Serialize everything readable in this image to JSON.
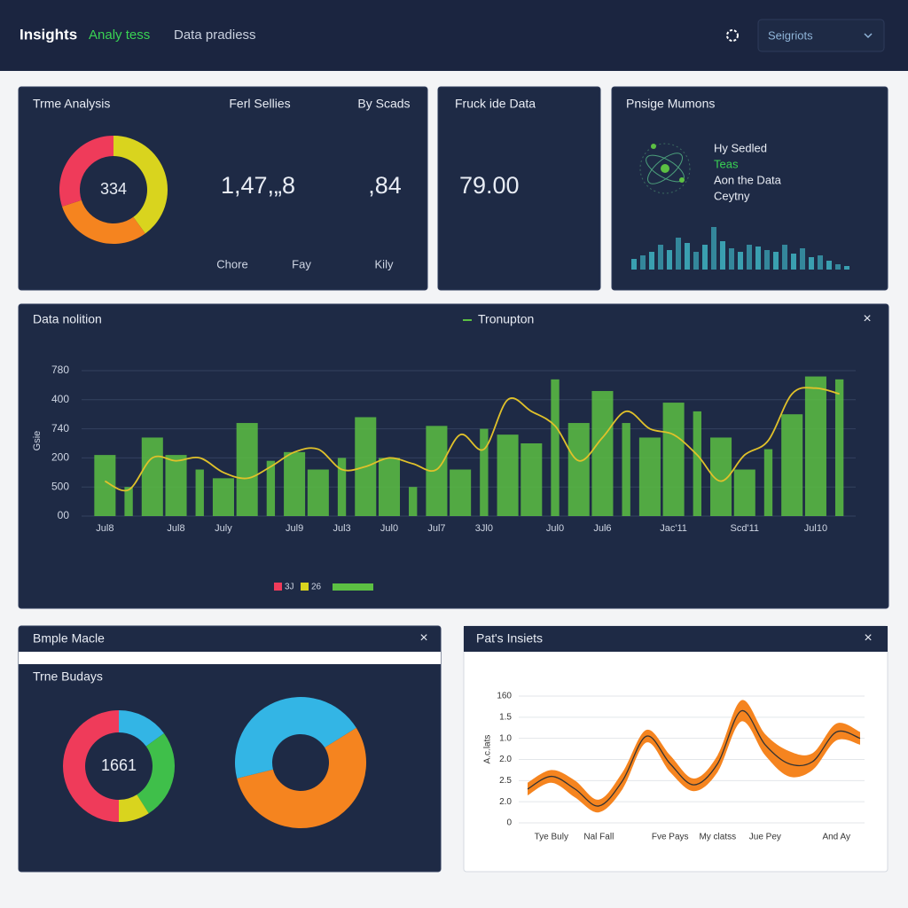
{
  "header": {
    "title": "Insights",
    "tabs": [
      "Analy tess",
      "Data pradiess"
    ],
    "select": "Seigriots"
  },
  "time_analysis": {
    "title": "Trme Analysis",
    "donut": {
      "type": "pie",
      "center_label": "334",
      "values": [
        40,
        30,
        30
      ],
      "colors": [
        "#d9d41e",
        "#f5841f",
        "#ef3b5a"
      ]
    },
    "stats": [
      {
        "heading": "Ferl Sellies",
        "value": "1,47,„8"
      },
      {
        "heading": "By Scads",
        "value": ",84"
      }
    ],
    "footer_labels": [
      "Chore",
      "Fay",
      "Kily"
    ]
  },
  "fruck": {
    "title": "Fruck ide Data",
    "value": "79.00"
  },
  "pnsige": {
    "title": "Pnsige Mumons",
    "lines": [
      "Hy Sedled",
      "Teas",
      "Aon the Data",
      "Ceytny"
    ],
    "bars": {
      "type": "bar",
      "color": "#3a9fb0",
      "values": [
        12,
        16,
        20,
        28,
        22,
        36,
        30,
        20,
        28,
        48,
        32,
        24,
        20,
        28,
        26,
        22,
        20,
        28,
        18,
        24,
        14,
        16,
        10,
        6,
        4
      ]
    }
  },
  "main_chart": {
    "type": "bar",
    "title": "Data nolition",
    "y_label": "Gsie",
    "ylim": [
      0,
      5
    ],
    "yticks": [
      {
        "value": 0,
        "label": "00"
      },
      {
        "value": 1,
        "label": "500"
      },
      {
        "value": 2,
        "label": "200"
      },
      {
        "value": 3,
        "label": "740"
      },
      {
        "value": 4,
        "label": "400"
      },
      {
        "value": 5,
        "label": "780"
      }
    ],
    "grid": true,
    "categories": [
      "Jul8",
      null,
      null,
      "Jul8",
      null,
      "July",
      null,
      null,
      "Jul9",
      null,
      "Jul3",
      null,
      "Jul0",
      null,
      "Jul7",
      null,
      "3Jl0",
      null,
      null,
      "Jul0",
      null,
      "Jul6",
      null,
      null,
      "Jac'11",
      null,
      null,
      "Scd'11",
      null,
      null,
      "Jul10",
      null
    ],
    "series": [
      {
        "name": "Tronupton",
        "color": "#5cc043",
        "values": [
          2.1,
          1.0,
          2.7,
          2.1,
          1.6,
          1.3,
          3.2,
          1.9,
          2.2,
          1.6,
          2.0,
          3.4,
          2.0,
          1.0,
          3.1,
          1.6,
          3.0,
          2.8,
          2.5,
          4.7,
          3.2,
          4.3,
          3.2,
          2.7,
          3.9,
          3.6,
          2.7,
          1.6,
          2.3,
          3.5,
          4.8,
          4.7
        ]
      },
      {
        "type": "line",
        "color": "#e0c12a",
        "values": [
          1.2,
          0.9,
          2.0,
          1.9,
          2.0,
          1.5,
          1.3,
          1.7,
          2.2,
          2.3,
          1.6,
          1.7,
          2.0,
          1.8,
          1.6,
          2.8,
          2.3,
          4.0,
          3.6,
          3.1,
          1.9,
          2.7,
          3.6,
          3.0,
          2.8,
          2.1,
          1.2,
          2.1,
          2.6,
          4.2,
          4.4,
          4.2
        ]
      }
    ],
    "legend_items": [
      {
        "label": "3J",
        "color": "#ef3b5a"
      },
      {
        "label": "26",
        "color": "#d9d41e"
      }
    ]
  },
  "bmple": {
    "title": "Bmple Macle",
    "subtitle": "Trne Budays",
    "donut": {
      "type": "pie",
      "center_label": "1661",
      "values": [
        15,
        26,
        9,
        50
      ],
      "colors": [
        "#33b5e5",
        "#3fbf4a",
        "#d9d41e",
        "#ef3b5a"
      ]
    },
    "ring": {
      "type": "pie",
      "values": [
        55,
        45
      ],
      "colors": [
        "#f5841f",
        "#33b5e5"
      ]
    }
  },
  "insights_chart": {
    "type": "line",
    "title": "Pat's Insiets",
    "y_label": "A.c.lats",
    "ylim": [
      0,
      6
    ],
    "yticks": [
      0,
      {
        "value": 1,
        "label": "2.0"
      },
      {
        "value": 2,
        "label": "2.5"
      },
      {
        "value": 3,
        "label": "2.0"
      },
      {
        "value": 4,
        "label": "1.0"
      },
      {
        "value": 5,
        "label": "1.5"
      },
      {
        "value": 6,
        "label": "160"
      }
    ],
    "grid": true,
    "categories": [
      null,
      "Tye Buly",
      null,
      "Nal Fall",
      null,
      null,
      "Fve Pays",
      null,
      "My clatss",
      null,
      "Jue Pey",
      null,
      null,
      "And Ay",
      null
    ],
    "color": "#f5841f",
    "line_color": "#333333",
    "values": [
      1.6,
      2.2,
      1.6,
      0.8,
      2.0,
      4.1,
      2.8,
      1.8,
      2.8,
      5.3,
      3.7,
      2.8,
      2.9,
      4.3,
      4.0
    ],
    "spread": [
      0.3,
      0.3,
      0.4,
      0.3,
      0.4,
      0.3,
      0.4,
      0.3,
      0.4,
      0.5,
      0.5,
      0.6,
      0.4,
      0.4,
      0.3
    ]
  }
}
